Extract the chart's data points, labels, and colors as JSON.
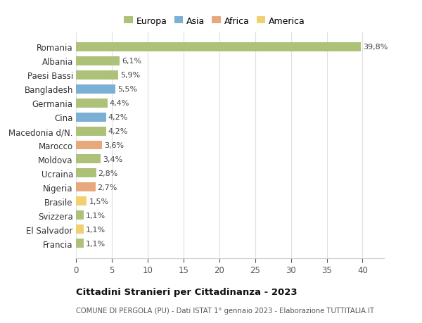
{
  "countries": [
    "Francia",
    "El Salvador",
    "Svizzera",
    "Brasile",
    "Nigeria",
    "Ucraina",
    "Moldova",
    "Marocco",
    "Macedonia d/N.",
    "Cina",
    "Germania",
    "Bangladesh",
    "Paesi Bassi",
    "Albania",
    "Romania"
  ],
  "values": [
    1.1,
    1.1,
    1.1,
    1.5,
    2.7,
    2.8,
    3.4,
    3.6,
    4.2,
    4.2,
    4.4,
    5.5,
    5.9,
    6.1,
    39.8
  ],
  "labels": [
    "1,1%",
    "1,1%",
    "1,1%",
    "1,5%",
    "2,7%",
    "2,8%",
    "3,4%",
    "3,6%",
    "4,2%",
    "4,2%",
    "4,4%",
    "5,5%",
    "5,9%",
    "6,1%",
    "39,8%"
  ],
  "continents": [
    "Europa",
    "America",
    "Europa",
    "America",
    "Africa",
    "Europa",
    "Europa",
    "Africa",
    "Europa",
    "Asia",
    "Europa",
    "Asia",
    "Europa",
    "Europa",
    "Europa"
  ],
  "colors": {
    "Europa": "#adc178",
    "Asia": "#7bafd4",
    "Africa": "#e8a87c",
    "America": "#f0d070"
  },
  "title": "Cittadini Stranieri per Cittadinanza - 2023",
  "subtitle": "COMUNE DI PERGOLA (PU) - Dati ISTAT 1° gennaio 2023 - Elaborazione TUTTITALIA.IT",
  "xlim": [
    0,
    43
  ],
  "xticks": [
    0,
    5,
    10,
    15,
    20,
    25,
    30,
    35,
    40
  ],
  "background_color": "#ffffff",
  "grid_color": "#e0e0e0"
}
